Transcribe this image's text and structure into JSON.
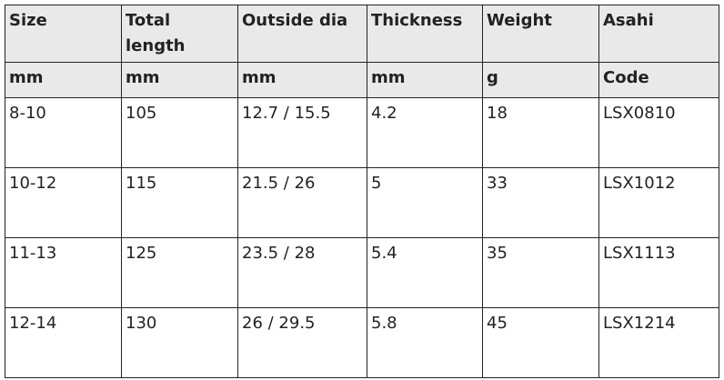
{
  "table": {
    "header": [
      "Size",
      "Total length",
      "Outside dia",
      "Thickness",
      "Weight",
      "Asahi"
    ],
    "units": [
      "mm",
      "mm",
      "mm",
      "mm",
      "g",
      "Code"
    ],
    "rows": [
      [
        "8-10",
        "105",
        "12.7 / 15.5",
        "4.2",
        "18",
        "LSX0810"
      ],
      [
        "10-12",
        "115",
        "21.5 / 26",
        "5",
        "33",
        "LSX1012"
      ],
      [
        "11-13",
        "125",
        "23.5 / 28",
        "5.4",
        "35",
        "LSX1113"
      ],
      [
        "12-14",
        "130",
        "26 / 29.5",
        "5.8",
        "45",
        "LSX1214"
      ]
    ]
  }
}
